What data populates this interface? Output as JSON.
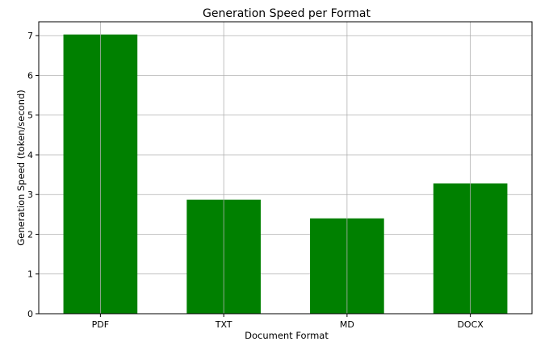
{
  "chart_data": {
    "type": "bar",
    "title": "Generation Speed per Format",
    "xlabel": "Document Format",
    "ylabel": "Generation Speed (token/second)",
    "categories": [
      "PDF",
      "TXT",
      "MD",
      "DOCX"
    ],
    "values": [
      7.03,
      2.87,
      2.4,
      3.28
    ],
    "ylim": [
      0,
      7.35
    ],
    "yticks": [
      0,
      1,
      2,
      3,
      4,
      5,
      6,
      7
    ],
    "grid": true,
    "bar_color": "#008000"
  }
}
